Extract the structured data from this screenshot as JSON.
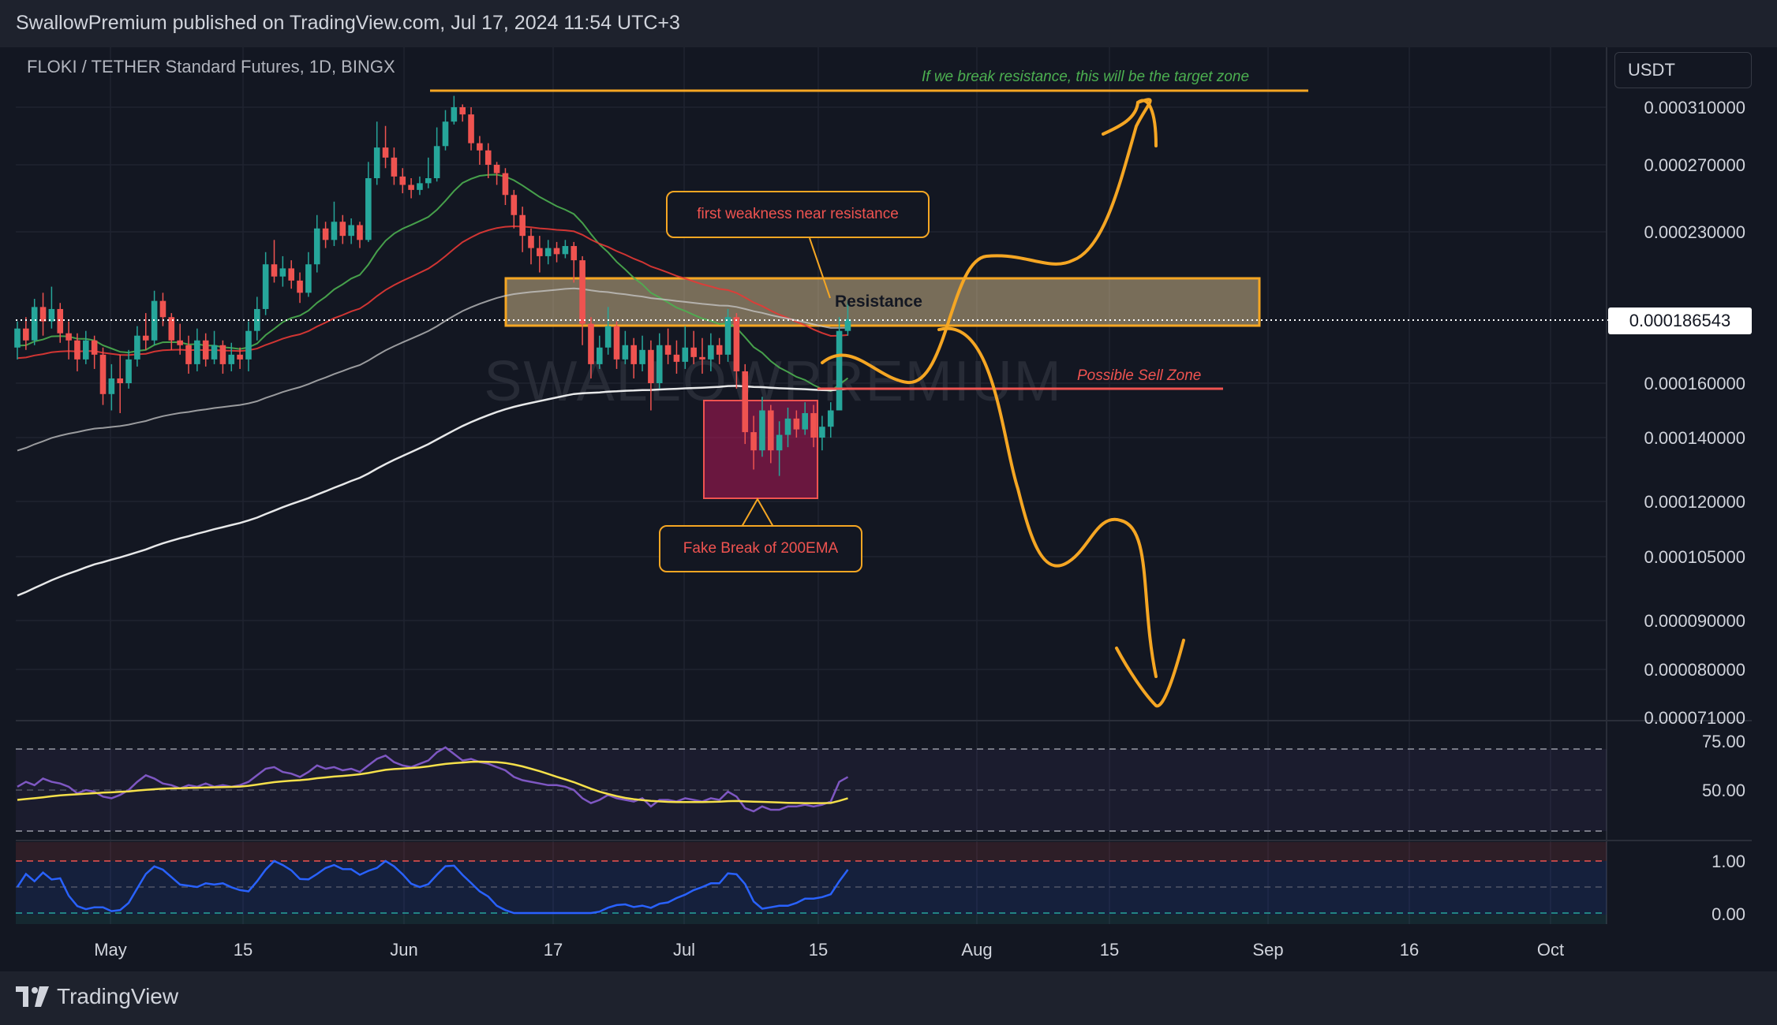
{
  "header": {
    "publisher": "SwallowPremium published on TradingView.com, Jul 17, 2024 11:54 UTC+3"
  },
  "footer": {
    "brand": "TradingView"
  },
  "chart_data": {
    "type": "candlestick",
    "symbol_line": "FLOKI / TETHER Standard Futures, 1D, BINGX",
    "currency": "USDT",
    "last_price": "0.000186543",
    "watermark": "SWALLOWPREMIUM",
    "y_axis_labels": [
      "0.000310000",
      "0.000270000",
      "0.000230000",
      "0.000160000",
      "0.000140000",
      "0.000120000",
      "0.000105000",
      "0.000090000",
      "0.000080000",
      "0.000071000"
    ],
    "x_axis_labels": [
      "May",
      "15",
      "Jun",
      "17",
      "Jul",
      "15",
      "Aug",
      "15",
      "Sep",
      "16",
      "Oct"
    ],
    "rsi_labels": [
      "75.00",
      "50.00"
    ],
    "stoch_labels": [
      "1.00",
      "0.00"
    ],
    "annotations": {
      "target_note": "If we break resistance, this will be the target zone",
      "resistance": "Resistance",
      "weakness": "first weakness near resistance",
      "sell_zone": "Possible Sell Zone",
      "fake_break": "Fake Break of 200EMA"
    },
    "candles": [
      [
        0.000175,
        0.000183,
        0.000186,
        0.00017
      ],
      [
        0.000183,
        0.000178,
        0.000188,
        0.000174
      ],
      [
        0.000178,
        0.000193,
        0.000197,
        0.000176
      ],
      [
        0.000193,
        0.000186,
        0.0002,
        0.00018
      ],
      [
        0.000186,
        0.000192,
        0.000203,
        0.000183
      ],
      [
        0.000192,
        0.000181,
        0.000195,
        0.000177
      ],
      [
        0.000181,
        0.000178,
        0.000186,
        0.00017
      ],
      [
        0.000178,
        0.00017,
        0.000181,
        0.000165
      ],
      [
        0.00017,
        0.000178,
        0.000182,
        0.000168
      ],
      [
        0.000178,
        0.000172,
        0.00018,
        0.000166
      ],
      [
        0.000172,
        0.000156,
        0.000175,
        0.000152
      ],
      [
        0.000156,
        0.000162,
        0.000168,
        0.00015
      ],
      [
        0.000162,
        0.00016,
        0.000172,
        0.000149
      ],
      [
        0.00016,
        0.00017,
        0.000174,
        0.000158
      ],
      [
        0.00017,
        0.00018,
        0.000184,
        0.000167
      ],
      [
        0.00018,
        0.000178,
        0.00019,
        0.000174
      ],
      [
        0.000178,
        0.000196,
        0.000201,
        0.000176
      ],
      [
        0.000196,
        0.000188,
        0.0002,
        0.000184
      ],
      [
        0.000188,
        0.000178,
        0.00019,
        0.000174
      ],
      [
        0.000178,
        0.000176,
        0.000185,
        0.000172
      ],
      [
        0.000176,
        0.000168,
        0.00018,
        0.000164
      ],
      [
        0.000168,
        0.000178,
        0.000183,
        0.000165
      ],
      [
        0.000178,
        0.00017,
        0.000181,
        0.000167
      ],
      [
        0.00017,
        0.000176,
        0.000182,
        0.000168
      ],
      [
        0.000176,
        0.000168,
        0.000178,
        0.000164
      ],
      [
        0.000168,
        0.000172,
        0.000177,
        0.000165
      ],
      [
        0.000172,
        0.00017,
        0.000175,
        0.000166
      ],
      [
        0.00017,
        0.000182,
        0.000186,
        0.000165
      ],
      [
        0.000182,
        0.000192,
        0.000198,
        0.000178
      ],
      [
        0.000192,
        0.000214,
        0.00022,
        0.000189
      ],
      [
        0.000214,
        0.000208,
        0.000226,
        0.000205
      ],
      [
        0.000208,
        0.000212,
        0.000218,
        0.000203
      ],
      [
        0.000212,
        0.000206,
        0.000216,
        0.000202
      ],
      [
        0.000206,
        0.0002,
        0.00021,
        0.000195
      ],
      [
        0.0002,
        0.000214,
        0.00022,
        0.000198
      ],
      [
        0.000214,
        0.000232,
        0.00024,
        0.00021
      ],
      [
        0.000232,
        0.000226,
        0.000236,
        0.000222
      ],
      [
        0.000226,
        0.000236,
        0.000248,
        0.000223
      ],
      [
        0.000236,
        0.000228,
        0.00024,
        0.000224
      ],
      [
        0.000228,
        0.000234,
        0.000238,
        0.000224
      ],
      [
        0.000234,
        0.000226,
        0.000236,
        0.000222
      ],
      [
        0.000226,
        0.000262,
        0.000272,
        0.000225
      ],
      [
        0.000262,
        0.000282,
        0.0003,
        0.000258
      ],
      [
        0.000282,
        0.000275,
        0.000297,
        0.000268
      ],
      [
        0.000275,
        0.000263,
        0.000282,
        0.000258
      ],
      [
        0.000263,
        0.000258,
        0.000268,
        0.000253
      ],
      [
        0.000258,
        0.000255,
        0.000262,
        0.00025
      ],
      [
        0.000255,
        0.000259,
        0.000263,
        0.000252
      ],
      [
        0.000259,
        0.000262,
        0.000275,
        0.000256
      ],
      [
        0.000262,
        0.000283,
        0.000296,
        0.00026
      ],
      [
        0.000283,
        0.0003,
        0.000308,
        0.00028
      ],
      [
        0.0003,
        0.00031,
        0.000318,
        0.000298
      ],
      [
        0.00031,
        0.000305,
        0.000312,
        0.0003
      ],
      [
        0.000305,
        0.000285,
        0.00031,
        0.00028
      ],
      [
        0.000285,
        0.00028,
        0.00029,
        0.00027
      ],
      [
        0.00028,
        0.00027,
        0.000285,
        0.000262
      ],
      [
        0.00027,
        0.000265,
        0.000272,
        0.000258
      ],
      [
        0.000265,
        0.000252,
        0.000268,
        0.000246
      ],
      [
        0.000252,
        0.00024,
        0.000255,
        0.000232
      ],
      [
        0.00024,
        0.000228,
        0.000245,
        0.00022
      ],
      [
        0.000228,
        0.000222,
        0.000232,
        0.000214
      ],
      [
        0.000222,
        0.000218,
        0.000228,
        0.00021
      ],
      [
        0.000218,
        0.000222,
        0.000226,
        0.000214
      ],
      [
        0.000222,
        0.000219,
        0.000225,
        0.000215
      ],
      [
        0.000219,
        0.000223,
        0.000226,
        0.000217
      ],
      [
        0.000223,
        0.000216,
        0.000225,
        0.000205
      ],
      [
        0.000216,
        0.000185,
        0.000218,
        0.000176
      ],
      [
        0.000185,
        0.000168,
        0.000188,
        0.000162
      ],
      [
        0.000168,
        0.000175,
        0.00018,
        0.000166
      ],
      [
        0.000175,
        0.000184,
        0.000193,
        0.000172
      ],
      [
        0.000184,
        0.00017,
        0.000186,
        0.000166
      ],
      [
        0.00017,
        0.000176,
        0.000182,
        0.000168
      ],
      [
        0.000176,
        0.000168,
        0.000179,
        0.000162
      ],
      [
        0.000168,
        0.000174,
        0.00018,
        0.000165
      ],
      [
        0.000174,
        0.00016,
        0.000178,
        0.00015
      ],
      [
        0.00016,
        0.000176,
        0.000181,
        0.000158
      ],
      [
        0.000176,
        0.000172,
        0.000183,
        0.000168
      ],
      [
        0.000172,
        0.000169,
        0.000178,
        0.000164
      ],
      [
        0.000169,
        0.000175,
        0.000184,
        0.000166
      ],
      [
        0.000175,
        0.000171,
        0.000182,
        0.000168
      ],
      [
        0.000171,
        0.00017,
        0.000179,
        0.000164
      ],
      [
        0.00017,
        0.000176,
        0.000181,
        0.000165
      ],
      [
        0.000176,
        0.000172,
        0.000179,
        0.000168
      ],
      [
        0.000172,
        0.000188,
        0.000192,
        0.000169
      ],
      [
        0.000188,
        0.000165,
        0.00019,
        0.000158
      ],
      [
        0.000165,
        0.000142,
        0.000168,
        0.000138
      ],
      [
        0.000142,
        0.000136,
        0.000148,
        0.00013
      ],
      [
        0.000136,
        0.00015,
        0.000155,
        0.000134
      ],
      [
        0.00015,
        0.000136,
        0.000152,
        0.000132
      ],
      [
        0.000136,
        0.000141,
        0.000146,
        0.000128
      ],
      [
        0.000141,
        0.000147,
        0.000151,
        0.000137
      ],
      [
        0.000147,
        0.000143,
        0.00015,
        0.00014
      ],
      [
        0.000143,
        0.000149,
        0.000153,
        0.000141
      ],
      [
        0.000149,
        0.00014,
        0.000152,
        0.000137
      ],
      [
        0.00014,
        0.000144,
        0.000148,
        0.000136
      ],
      [
        0.000144,
        0.00015,
        0.000153,
        0.00014
      ],
      [
        0.00015,
        0.000182,
        0.000188,
        0.00015
      ],
      [
        0.000182,
        0.000187,
        0.000196,
        0.00018
      ]
    ],
    "rsi": [
      52,
      55,
      53,
      57,
      55,
      54,
      52,
      48,
      50,
      49,
      46,
      45,
      47,
      50,
      55,
      59,
      57,
      54,
      53,
      51,
      53,
      52,
      54,
      52,
      53,
      52,
      53,
      55,
      59,
      63,
      64,
      61,
      60,
      58,
      61,
      65,
      63,
      64,
      62,
      63,
      61,
      65,
      69,
      71,
      67,
      65,
      64,
      66,
      68,
      73,
      76,
      72,
      68,
      69,
      67,
      66,
      64,
      62,
      58,
      56,
      55,
      54,
      53,
      53,
      52,
      50,
      45,
      42,
      44,
      47,
      45,
      44,
      43,
      45,
      40,
      44,
      44,
      43,
      45,
      44,
      43,
      45,
      44,
      49,
      46,
      39,
      37,
      40,
      38,
      38,
      40,
      40,
      41,
      40,
      41,
      43,
      55,
      58
    ],
    "rsi_ma": [
      44,
      44.5,
      45,
      45.6,
      46.2,
      46.8,
      47.1,
      47.4,
      47.8,
      48.1,
      48.4,
      48.6,
      48.9,
      49.2,
      49.7,
      50.1,
      50.5,
      50.8,
      51,
      51.1,
      51.3,
      51.4,
      51.6,
      51.7,
      51.8,
      51.9,
      52.1,
      52.6,
      53.3,
      54.1,
      54.8,
      55.3,
      55.7,
      56,
      56.5,
      57.2,
      57.7,
      58.2,
      58.6,
      59.1,
      59.6,
      60.4,
      61.4,
      62.3,
      62.8,
      63.1,
      63.4,
      63.8,
      64.4,
      65.2,
      65.9,
      66.4,
      66.8,
      67.2,
      67.3,
      67.2,
      67,
      66.5,
      65.6,
      64.4,
      63,
      61.5,
      59.8,
      58.1,
      56.5,
      54.8,
      52.8,
      50.8,
      49,
      47.6,
      46.3,
      45.2,
      44.4,
      43.9,
      43.4,
      43.1,
      42.8,
      42.7,
      42.7,
      42.7,
      42.7,
      42.8,
      42.9,
      43.2,
      43.3,
      43.1,
      42.9,
      42.8,
      42.6,
      42.4,
      42.2,
      42.1,
      42,
      42,
      42,
      42.1,
      43.4,
      45
    ]
  }
}
